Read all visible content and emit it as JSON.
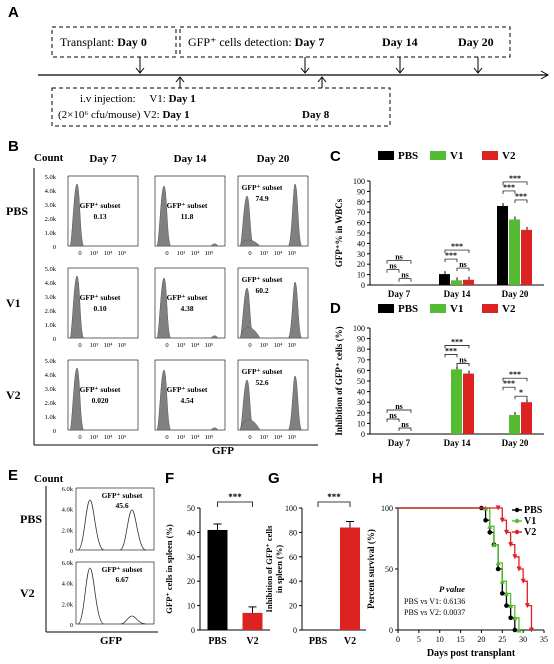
{
  "panels": {
    "A": "A",
    "B": "B",
    "C": "C",
    "D": "D",
    "E": "E",
    "F": "F",
    "G": "G",
    "H": "H"
  },
  "timeline": {
    "transplant_label": "Transplant: ",
    "transplant_day": "Day 0",
    "detection_label": "GFP⁺ cells detection: ",
    "detection_days": [
      "Day 7",
      "Day 14",
      "Day 20"
    ],
    "injection_line1_prefix": "i.v injection:",
    "injection_v1": "V1: ",
    "injection_v1_day": "Day 1",
    "injection_line2_prefix": "(2×10⁶ cfu/mouse)",
    "injection_v2": "V2: ",
    "injection_v2_day": "Day 1",
    "injection_v2_day2": "Day 8"
  },
  "flow_B": {
    "count_label": "Count",
    "gfp_label": "GFP",
    "columns": [
      "Day 7",
      "Day 14",
      "Day 20"
    ],
    "rows": [
      "PBS",
      "V1",
      "V2"
    ],
    "y_ticks": [
      "5.0k",
      "4.0k",
      "3.0k",
      "2.0k",
      "1.0k",
      "0"
    ],
    "x_ticks": [
      "0",
      "10³",
      "10⁴",
      "10⁵"
    ],
    "subset_label": "GFP⁺ subset",
    "values": [
      [
        "0.13",
        "11.8",
        "74.9"
      ],
      [
        "0.10",
        "4.38",
        "60.2"
      ],
      [
        "0.020",
        "4.54",
        "52.6"
      ]
    ]
  },
  "chart_C": {
    "type": "bar",
    "legend": [
      "PBS",
      "V1",
      "V2"
    ],
    "ylabel": "GFP⁺% in WBCs",
    "ylim": [
      0,
      100
    ],
    "y_ticks": [
      "0",
      "10",
      "20",
      "30",
      "40",
      "50",
      "60",
      "70",
      "80",
      "90",
      "100"
    ],
    "categories": [
      "Day 7",
      "Day 14",
      "Day 20"
    ],
    "series": [
      {
        "name": "PBS",
        "values": [
          0.3,
          10.5,
          76
        ]
      },
      {
        "name": "V1",
        "values": [
          0.2,
          4.5,
          63
        ]
      },
      {
        "name": "V2",
        "values": [
          0.1,
          5,
          53
        ]
      }
    ],
    "sig": {
      "d7": [
        "ns",
        "ns",
        "ns"
      ],
      "d14": [
        "***",
        "***",
        "ns"
      ],
      "d20": [
        "***",
        "***",
        "***"
      ]
    }
  },
  "chart_D": {
    "type": "bar",
    "legend": [
      "PBS",
      "V1",
      "V2"
    ],
    "ylabel": "Inhibition of GFP⁺ cells (%)",
    "ylim": [
      0,
      100
    ],
    "y_ticks": [
      "0",
      "10",
      "20",
      "30",
      "40",
      "50",
      "60",
      "70",
      "80",
      "90",
      "100"
    ],
    "categories": [
      "Day 7",
      "Day 14",
      "Day 20"
    ],
    "series": [
      {
        "name": "PBS",
        "values": [
          0,
          0,
          0
        ]
      },
      {
        "name": "V1",
        "values": [
          0,
          61,
          18
        ]
      },
      {
        "name": "V2",
        "values": [
          0,
          57,
          30
        ]
      }
    ],
    "sig": {
      "d7": [
        "ns",
        "ns",
        "ns"
      ],
      "d14": [
        "***",
        "***",
        "ns"
      ],
      "d20": [
        "***",
        "***",
        "*"
      ]
    }
  },
  "flow_E": {
    "count_label": "Count",
    "gfp_label": "GFP",
    "rows": [
      "PBS",
      "V2"
    ],
    "y_ticks": [
      "6.0k",
      "4.0k",
      "2.0k",
      "0"
    ],
    "subset_label": "GFP⁺ subset",
    "values": [
      "45.6",
      "6.67"
    ]
  },
  "chart_F": {
    "type": "bar",
    "ylabel": "GFP⁺ cells in spleen (%)",
    "ylim": [
      0,
      50
    ],
    "y_ticks": [
      "0",
      "10",
      "20",
      "30",
      "40",
      "50"
    ],
    "categories": [
      "PBS",
      "V2"
    ],
    "values": [
      41,
      7
    ],
    "sig": "***"
  },
  "chart_G": {
    "type": "bar",
    "ylabel_line1": "Inhibition of GFP⁺ cells",
    "ylabel_line2": "in spleen (%)",
    "ylim": [
      0,
      100
    ],
    "y_ticks": [
      "0",
      "20",
      "40",
      "60",
      "80",
      "100"
    ],
    "categories": [
      "PBS",
      "V2"
    ],
    "values": [
      0,
      84
    ],
    "sig": "***"
  },
  "chart_H": {
    "type": "line",
    "ylabel": "Percent survival (%)",
    "xlabel": "Days post transplant",
    "ylim": [
      0,
      100
    ],
    "xlim": [
      0,
      35
    ],
    "y_ticks": [
      "0",
      "50",
      "100"
    ],
    "x_ticks": [
      "0",
      "5",
      "10",
      "15",
      "20",
      "25",
      "30",
      "35"
    ],
    "legend": [
      "PBS",
      "V1",
      "V2"
    ],
    "pvalue_title": "P value",
    "pvalue_lines": [
      "PBS vs V1: 0.6136",
      "PBS vs V2: 0.0037"
    ]
  },
  "colors": {
    "pbs": "#000000",
    "v1": "#55bb33",
    "v2": "#dd2222",
    "hist": "#808080"
  }
}
